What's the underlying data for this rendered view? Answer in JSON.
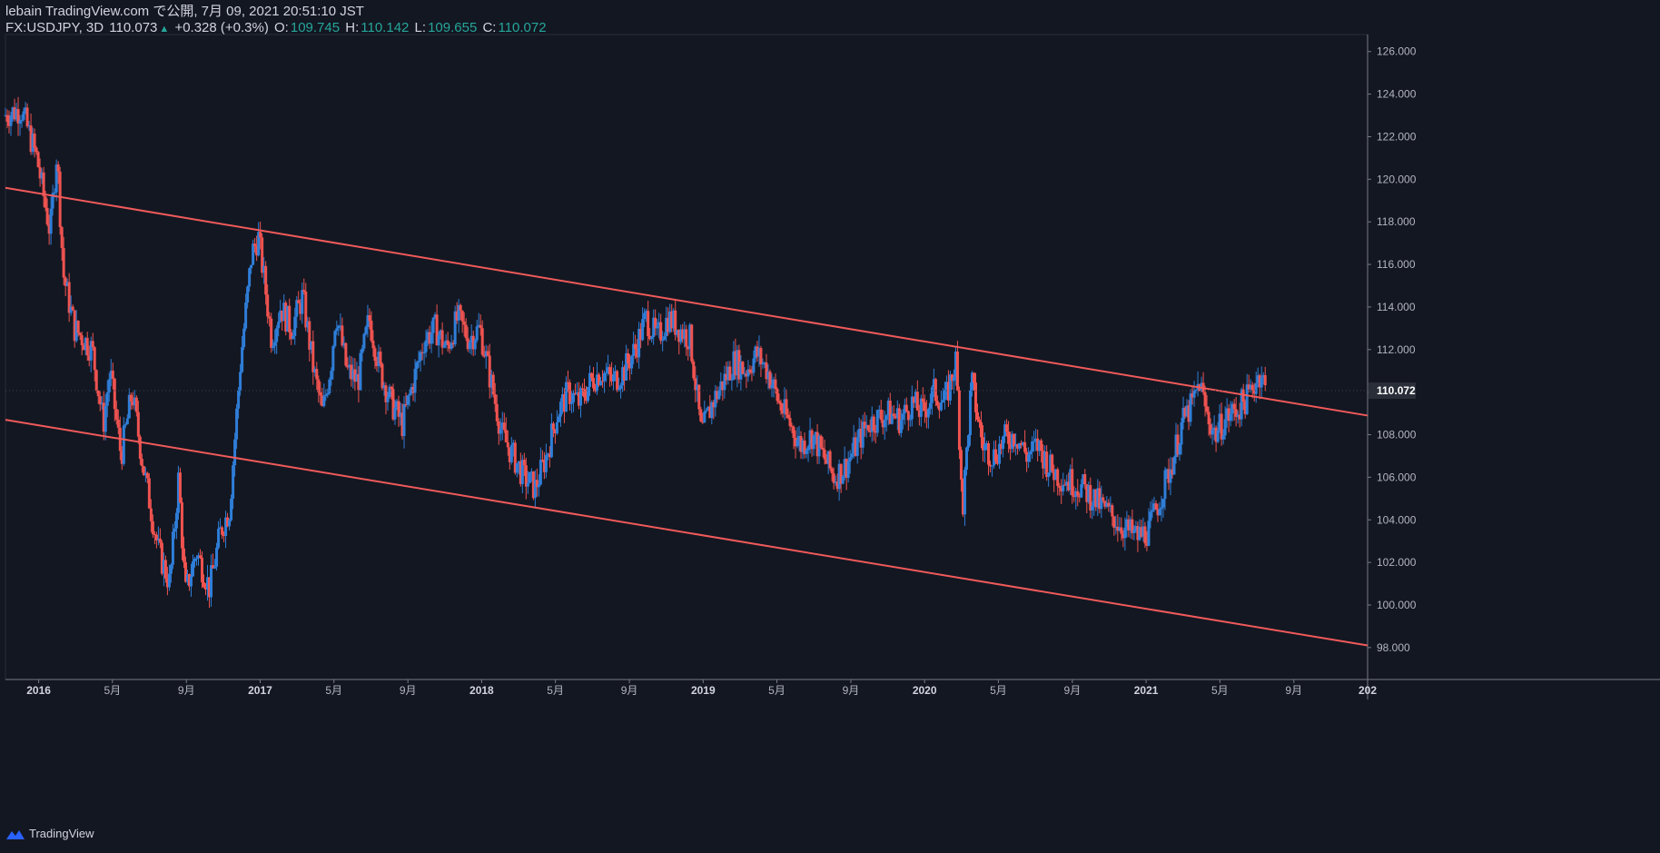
{
  "header": {
    "line1": "lebain TradingView.com で公開, 7月 09, 2021 20:51:10 JST",
    "symbol": "FX:USDJPY, 3D",
    "last": "110.073",
    "change_arrow": "▲",
    "change": "+0.328 (+0.3%)",
    "o_label": "O:",
    "o_val": "109.745",
    "h_label": "H:",
    "h_val": "110.142",
    "l_label": "L:",
    "l_val": "109.655",
    "c_label": "C:",
    "c_val": "110.072"
  },
  "footer": {
    "brand": "TradingView"
  },
  "colors": {
    "background": "#131722",
    "up": "#2f7ed8",
    "down": "#ef5350",
    "trendline": "#f05a5a",
    "text": "#b2b5be"
  },
  "chart_data": {
    "type": "candlestick",
    "symbol": "FX:USDJPY",
    "interval": "3D",
    "ylim": [
      96.5,
      126.8
    ],
    "y_ticks": [
      "126.000",
      "124.000",
      "122.000",
      "120.000",
      "118.000",
      "116.000",
      "114.000",
      "112.000",
      "110.000",
      "108.000",
      "106.000",
      "104.000",
      "102.000",
      "100.000",
      "98.000"
    ],
    "last_price_label": "110.072",
    "x_ticks": [
      {
        "label": "2016",
        "t": 2016.0,
        "bold": true
      },
      {
        "label": "5月",
        "t": 2016.333
      },
      {
        "label": "9月",
        "t": 2016.667
      },
      {
        "label": "2017",
        "t": 2017.0,
        "bold": true
      },
      {
        "label": "5月",
        "t": 2017.333
      },
      {
        "label": "9月",
        "t": 2017.667
      },
      {
        "label": "2018",
        "t": 2018.0,
        "bold": true
      },
      {
        "label": "5月",
        "t": 2018.333
      },
      {
        "label": "9月",
        "t": 2018.667
      },
      {
        "label": "2019",
        "t": 2019.0,
        "bold": true
      },
      {
        "label": "5月",
        "t": 2019.333
      },
      {
        "label": "9月",
        "t": 2019.667
      },
      {
        "label": "2020",
        "t": 2020.0,
        "bold": true
      },
      {
        "label": "5月",
        "t": 2020.333
      },
      {
        "label": "9月",
        "t": 2020.667
      },
      {
        "label": "2021",
        "t": 2021.0,
        "bold": true
      },
      {
        "label": "5月",
        "t": 2021.333
      },
      {
        "label": "9月",
        "t": 2021.667
      },
      {
        "label": "202",
        "t": 2022.0,
        "bold": true
      }
    ],
    "xlim": [
      2015.85,
      2022.0
    ],
    "trendlines": [
      {
        "name": "upper",
        "from": [
          2015.85,
          119.6
        ],
        "to": [
          2022.0,
          108.9
        ]
      },
      {
        "name": "lower",
        "from": [
          2015.85,
          108.7
        ],
        "to": [
          2022.0,
          98.1
        ]
      }
    ],
    "price_path": [
      [
        2015.85,
        123.0
      ],
      [
        2015.93,
        123.3
      ],
      [
        2016.0,
        121.0
      ],
      [
        2016.06,
        117.5
      ],
      [
        2016.09,
        121.3
      ],
      [
        2016.12,
        115.5
      ],
      [
        2016.17,
        113.0
      ],
      [
        2016.25,
        112.0
      ],
      [
        2016.3,
        108.5
      ],
      [
        2016.33,
        111.0
      ],
      [
        2016.38,
        107.0
      ],
      [
        2016.43,
        110.0
      ],
      [
        2016.48,
        106.5
      ],
      [
        2016.55,
        102.5
      ],
      [
        2016.6,
        101.0
      ],
      [
        2016.64,
        106.0
      ],
      [
        2016.67,
        100.5
      ],
      [
        2016.72,
        102.5
      ],
      [
        2016.78,
        100.8
      ],
      [
        2016.83,
        103.5
      ],
      [
        2016.87,
        104.5
      ],
      [
        2016.92,
        111.5
      ],
      [
        2016.97,
        116.5
      ],
      [
        2017.0,
        117.3
      ],
      [
        2017.03,
        115.0
      ],
      [
        2017.06,
        112.5
      ],
      [
        2017.1,
        114.0
      ],
      [
        2017.15,
        113.0
      ],
      [
        2017.2,
        114.5
      ],
      [
        2017.25,
        111.0
      ],
      [
        2017.29,
        109.0
      ],
      [
        2017.33,
        111.5
      ],
      [
        2017.35,
        113.8
      ],
      [
        2017.4,
        111.0
      ],
      [
        2017.45,
        110.5
      ],
      [
        2017.5,
        113.5
      ],
      [
        2017.55,
        111.0
      ],
      [
        2017.6,
        109.5
      ],
      [
        2017.65,
        108.5
      ],
      [
        2017.7,
        110.5
      ],
      [
        2017.75,
        112.5
      ],
      [
        2017.8,
        113.0
      ],
      [
        2017.85,
        112.0
      ],
      [
        2017.9,
        113.5
      ],
      [
        2017.95,
        112.5
      ],
      [
        2018.0,
        113.0
      ],
      [
        2018.05,
        110.5
      ],
      [
        2018.1,
        108.0
      ],
      [
        2018.15,
        107.0
      ],
      [
        2018.2,
        106.0
      ],
      [
        2018.25,
        105.5
      ],
      [
        2018.3,
        107.0
      ],
      [
        2018.35,
        109.0
      ],
      [
        2018.4,
        110.0
      ],
      [
        2018.45,
        109.5
      ],
      [
        2018.5,
        110.5
      ],
      [
        2018.55,
        111.0
      ],
      [
        2018.6,
        110.5
      ],
      [
        2018.65,
        111.0
      ],
      [
        2018.7,
        112.0
      ],
      [
        2018.75,
        113.5
      ],
      [
        2018.8,
        112.5
      ],
      [
        2018.85,
        113.5
      ],
      [
        2018.9,
        113.0
      ],
      [
        2018.95,
        112.5
      ],
      [
        2019.0,
        108.0
      ],
      [
        2019.05,
        109.5
      ],
      [
        2019.1,
        110.5
      ],
      [
        2019.15,
        111.5
      ],
      [
        2019.2,
        111.0
      ],
      [
        2019.25,
        111.8
      ],
      [
        2019.3,
        111.0
      ],
      [
        2019.35,
        109.5
      ],
      [
        2019.4,
        108.5
      ],
      [
        2019.45,
        107.5
      ],
      [
        2019.5,
        108.0
      ],
      [
        2019.55,
        107.0
      ],
      [
        2019.6,
        106.0
      ],
      [
        2019.65,
        106.5
      ],
      [
        2019.7,
        107.5
      ],
      [
        2019.75,
        108.5
      ],
      [
        2019.8,
        108.8
      ],
      [
        2019.85,
        109.0
      ],
      [
        2019.9,
        108.7
      ],
      [
        2019.95,
        109.5
      ],
      [
        2020.0,
        109.0
      ],
      [
        2020.05,
        110.0
      ],
      [
        2020.1,
        109.5
      ],
      [
        2020.15,
        111.5
      ],
      [
        2020.18,
        104.5
      ],
      [
        2020.22,
        110.5
      ],
      [
        2020.27,
        107.5
      ],
      [
        2020.32,
        107.0
      ],
      [
        2020.37,
        107.8
      ],
      [
        2020.42,
        108.0
      ],
      [
        2020.47,
        107.0
      ],
      [
        2020.52,
        107.5
      ],
      [
        2020.57,
        106.5
      ],
      [
        2020.62,
        106.0
      ],
      [
        2020.67,
        105.8
      ],
      [
        2020.72,
        105.5
      ],
      [
        2020.77,
        105.0
      ],
      [
        2020.82,
        104.5
      ],
      [
        2020.87,
        104.0
      ],
      [
        2020.92,
        103.5
      ],
      [
        2020.97,
        103.2
      ],
      [
        2021.02,
        103.5
      ],
      [
        2021.07,
        105.0
      ],
      [
        2021.12,
        106.5
      ],
      [
        2021.17,
        108.5
      ],
      [
        2021.22,
        109.5
      ],
      [
        2021.25,
        110.5
      ],
      [
        2021.28,
        109.0
      ],
      [
        2021.32,
        108.0
      ],
      [
        2021.37,
        108.8
      ],
      [
        2021.42,
        109.2
      ],
      [
        2021.47,
        109.8
      ],
      [
        2021.5,
        110.5
      ],
      [
        2021.53,
        111.0
      ],
      [
        2021.545,
        110.07
      ]
    ]
  }
}
